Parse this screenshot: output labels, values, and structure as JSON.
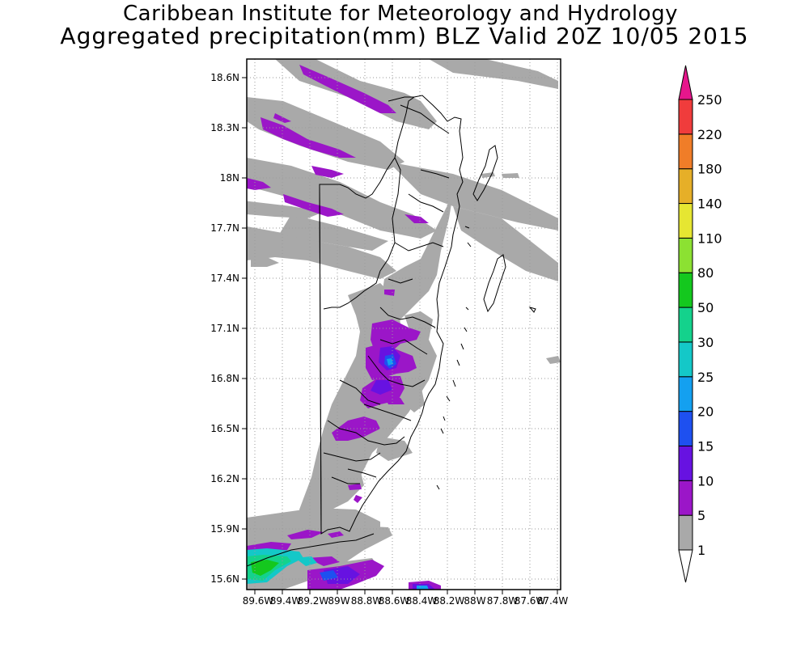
{
  "title": {
    "line1": "Caribbean Institute for Meteorology and Hydrology",
    "line2": "Aggregated precipitation(mm) BLZ Valid 20Z 10/05 2015"
  },
  "map": {
    "lat_range": [
      15.55,
      18.73
    ],
    "lon_range": [
      -89.65,
      -87.35
    ],
    "lat_ticks": [
      "15.6N",
      "15.9N",
      "16.2N",
      "16.5N",
      "16.8N",
      "17.1N",
      "17.4N",
      "17.7N",
      "18N",
      "18.3N",
      "18.6N"
    ],
    "lon_ticks": [
      "89.6W",
      "89.4W",
      "89.2W",
      "89W",
      "88.8W",
      "88.6W",
      "88.4W",
      "88.2W",
      "88W",
      "87.8W",
      "87.6W",
      "87.4W"
    ]
  },
  "colorbar": {
    "labels": [
      "1",
      "5",
      "10",
      "15",
      "20",
      "25",
      "30",
      "50",
      "80",
      "110",
      "140",
      "180",
      "220",
      "250"
    ],
    "colors": [
      "#ffffff",
      "#a9a9a9",
      "#9b16c8",
      "#6712e1",
      "#1e50f0",
      "#14a0f0",
      "#14c8c8",
      "#14d28c",
      "#14c81e",
      "#8ce132",
      "#e6e632",
      "#e6af28",
      "#f07d28",
      "#f03c3c",
      "#e6168c"
    ]
  }
}
